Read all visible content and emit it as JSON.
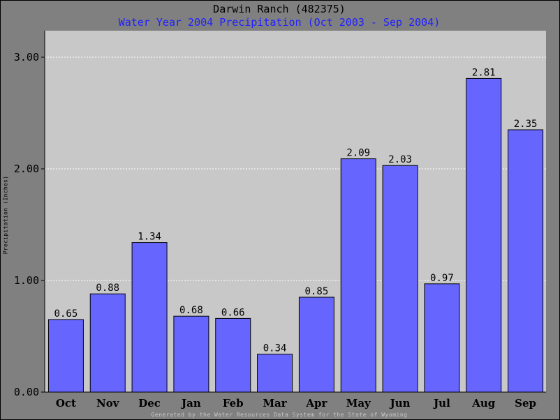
{
  "chart_data": {
    "type": "bar",
    "title": "Darwin Ranch (482375)",
    "subtitle": "Water Year 2004 Precipitation (Oct 2003 - Sep 2004)",
    "ylabel": "Precipitation (Inches)",
    "xlabel": "",
    "categories": [
      "Oct",
      "Nov",
      "Dec",
      "Jan",
      "Feb",
      "Mar",
      "Apr",
      "May",
      "Jun",
      "Jul",
      "Aug",
      "Sep"
    ],
    "values": [
      0.65,
      0.88,
      1.34,
      0.68,
      0.66,
      0.34,
      0.85,
      2.09,
      2.03,
      0.97,
      2.81,
      2.35
    ],
    "value_labels": [
      "0.65",
      "0.88",
      "1.34",
      "0.68",
      "0.66",
      "0.34",
      "0.85",
      "2.09",
      "2.03",
      "0.97",
      "2.81",
      "2.35"
    ],
    "ylim": [
      0,
      3.0
    ],
    "yticks": [
      0,
      1,
      2,
      3
    ],
    "ytick_labels": [
      "0.00",
      "1.00",
      "2.00",
      "3.00"
    ],
    "grid": true,
    "bar_color": "#6666ff",
    "plot_background": "#c8c8c8",
    "page_background": "#808080",
    "subtitle_color": "#2020ff"
  },
  "footer": "Generated by the Water Resources Data System for the State of Wyoming"
}
